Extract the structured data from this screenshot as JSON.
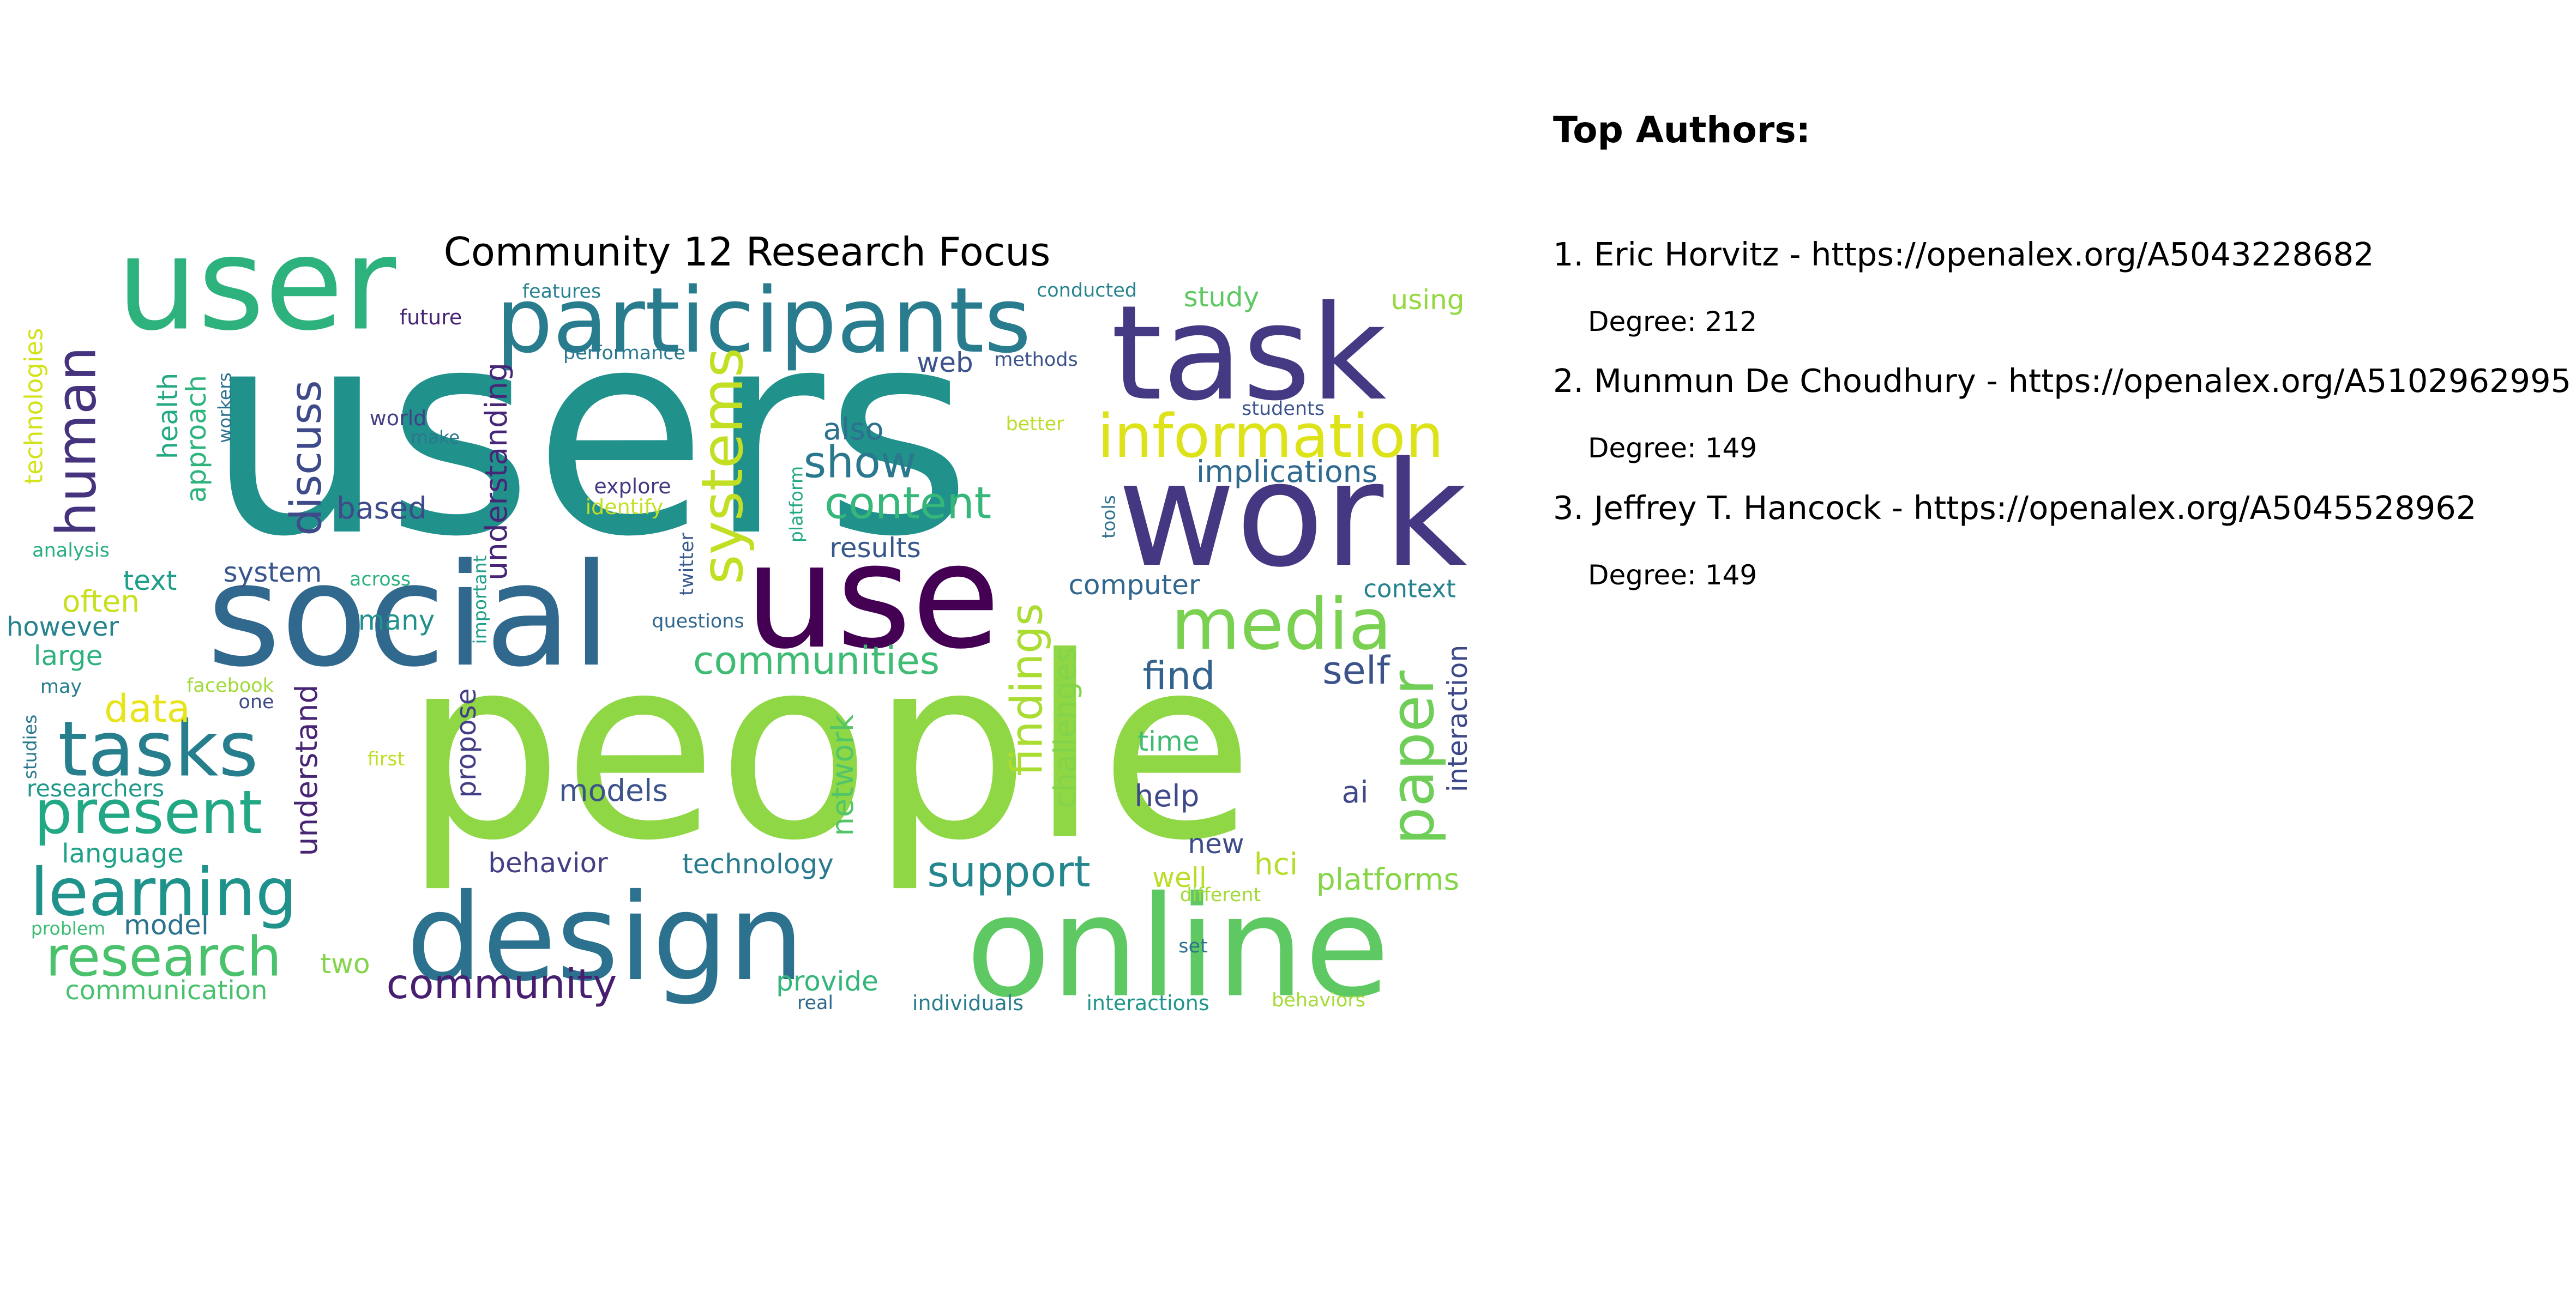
{
  "title": "Community 12 Research Focus",
  "top_authors": {
    "heading": "Top Authors:",
    "items": [
      {
        "rank": "1.",
        "name": "Eric Horvitz",
        "url": "https://openalex.org/A5043228682",
        "degree_label": "Degree:",
        "degree": 212
      },
      {
        "rank": "2.",
        "name": "Munmun De Choudhury",
        "url": "https://openalex.org/A5102962995",
        "degree_label": "Degree:",
        "degree": 149
      },
      {
        "rank": "3.",
        "name": "Jeffrey T. Hancock",
        "url": "https://openalex.org/A5045528962",
        "degree_label": "Degree:",
        "degree": 149
      }
    ]
  },
  "word_cloud": {
    "colormap": "viridis",
    "words": [
      {
        "text": "users",
        "color": "#21918c"
      },
      {
        "text": "people",
        "color": "#8fd744"
      },
      {
        "text": "user",
        "color": "#2db27d"
      },
      {
        "text": "task",
        "color": "#443983"
      },
      {
        "text": "participants",
        "color": "#287c8e"
      },
      {
        "text": "work",
        "color": "#453781"
      },
      {
        "text": "social",
        "color": "#31688e"
      },
      {
        "text": "use",
        "color": "#440154"
      },
      {
        "text": "design",
        "color": "#2c728e"
      },
      {
        "text": "online",
        "color": "#5ec962"
      },
      {
        "text": "information",
        "color": "#dde318"
      },
      {
        "text": "media",
        "color": "#7ad151"
      },
      {
        "text": "systems",
        "color": "#c2df23"
      },
      {
        "text": "human",
        "color": "#46337e"
      },
      {
        "text": "tasks",
        "color": "#277f8e"
      },
      {
        "text": "present",
        "color": "#22a884"
      },
      {
        "text": "learning",
        "color": "#20928c"
      },
      {
        "text": "research",
        "color": "#4ac16d"
      },
      {
        "text": "paper",
        "color": "#6ece58"
      },
      {
        "text": "content",
        "color": "#35b779"
      },
      {
        "text": "show",
        "color": "#2a788e"
      },
      {
        "text": "discuss",
        "color": "#3e4a89"
      },
      {
        "text": "community",
        "color": "#481f70"
      },
      {
        "text": "support",
        "color": "#24878e"
      },
      {
        "text": "findings",
        "color": "#aadc32"
      },
      {
        "text": "communities",
        "color": "#3fbc73"
      },
      {
        "text": "self",
        "color": "#3b528b"
      },
      {
        "text": "find",
        "color": "#33638d"
      },
      {
        "text": "implications",
        "color": "#306a8e"
      },
      {
        "text": "understanding",
        "color": "#482677"
      },
      {
        "text": "understand",
        "color": "#482475"
      },
      {
        "text": "network",
        "color": "#52c569"
      },
      {
        "text": "challenges",
        "color": "#84d44b"
      },
      {
        "text": "interaction",
        "color": "#3e4989"
      },
      {
        "text": "platforms",
        "color": "#86d549"
      },
      {
        "text": "health",
        "color": "#23a983"
      },
      {
        "text": "approach",
        "color": "#2eb37c"
      },
      {
        "text": "data",
        "color": "#e7e419"
      },
      {
        "text": "study",
        "color": "#5ec962"
      },
      {
        "text": "using",
        "color": "#95d840"
      },
      {
        "text": "web",
        "color": "#3a538b"
      },
      {
        "text": "based",
        "color": "#3e4a89"
      },
      {
        "text": "also",
        "color": "#2c718e"
      },
      {
        "text": "results",
        "color": "#38588c"
      },
      {
        "text": "system",
        "color": "#39568c"
      },
      {
        "text": "computer",
        "color": "#31678e"
      },
      {
        "text": "context",
        "color": "#25838e"
      },
      {
        "text": "technologies",
        "color": "#d2e21b"
      },
      {
        "text": "text",
        "color": "#1f9e89"
      },
      {
        "text": "however",
        "color": "#26828e"
      },
      {
        "text": "often",
        "color": "#c8e020"
      },
      {
        "text": "large",
        "color": "#2db27d"
      },
      {
        "text": "many",
        "color": "#21918c"
      },
      {
        "text": "models",
        "color": "#3b528b"
      },
      {
        "text": "behavior",
        "color": "#423f85"
      },
      {
        "text": "technology",
        "color": "#297b8e"
      },
      {
        "text": "propose",
        "color": "#433e85"
      },
      {
        "text": "time",
        "color": "#3fbc73"
      },
      {
        "text": "help",
        "color": "#3e4989"
      },
      {
        "text": "ai",
        "color": "#3f4788"
      },
      {
        "text": "new",
        "color": "#3e4c8a"
      },
      {
        "text": "hci",
        "color": "#b5de2b"
      },
      {
        "text": "well",
        "color": "#b8de29"
      },
      {
        "text": "language",
        "color": "#1fa188"
      },
      {
        "text": "researchers",
        "color": "#1f9a8a"
      },
      {
        "text": "model",
        "color": "#2c728e"
      },
      {
        "text": "two",
        "color": "#84d44b"
      },
      {
        "text": "provide",
        "color": "#34b679"
      },
      {
        "text": "communication",
        "color": "#4ac16d"
      },
      {
        "text": "future",
        "color": "#482475"
      },
      {
        "text": "features",
        "color": "#26828e"
      },
      {
        "text": "conducted",
        "color": "#25848e"
      },
      {
        "text": "performance",
        "color": "#2a788e"
      },
      {
        "text": "methods",
        "color": "#3b528b"
      },
      {
        "text": "students",
        "color": "#3b528b"
      },
      {
        "text": "better",
        "color": "#b8de29"
      },
      {
        "text": "world",
        "color": "#423f85"
      },
      {
        "text": "make",
        "color": "#2a788e"
      },
      {
        "text": "workers",
        "color": "#2c728e"
      },
      {
        "text": "explore",
        "color": "#453882"
      },
      {
        "text": "identify",
        "color": "#c2df23"
      },
      {
        "text": "platform",
        "color": "#22a884"
      },
      {
        "text": "tools",
        "color": "#2c728e"
      },
      {
        "text": "analysis",
        "color": "#29af7f"
      },
      {
        "text": "across",
        "color": "#2ab07f"
      },
      {
        "text": "important",
        "color": "#1f9e89"
      },
      {
        "text": "twitter",
        "color": "#38598c"
      },
      {
        "text": "questions",
        "color": "#31688e"
      },
      {
        "text": "facebook",
        "color": "#a0da39"
      },
      {
        "text": "one",
        "color": "#3e4a89"
      },
      {
        "text": "may",
        "color": "#287d8e"
      },
      {
        "text": "studies",
        "color": "#2a788e"
      },
      {
        "text": "first",
        "color": "#bddf26"
      },
      {
        "text": "different",
        "color": "#a2da37"
      },
      {
        "text": "set",
        "color": "#2c728e"
      },
      {
        "text": "problem",
        "color": "#3dbc74"
      },
      {
        "text": "real",
        "color": "#31688e"
      },
      {
        "text": "individuals",
        "color": "#287c8e"
      },
      {
        "text": "interactions",
        "color": "#1f968b"
      },
      {
        "text": "behaviors",
        "color": "#a5db36"
      }
    ]
  }
}
